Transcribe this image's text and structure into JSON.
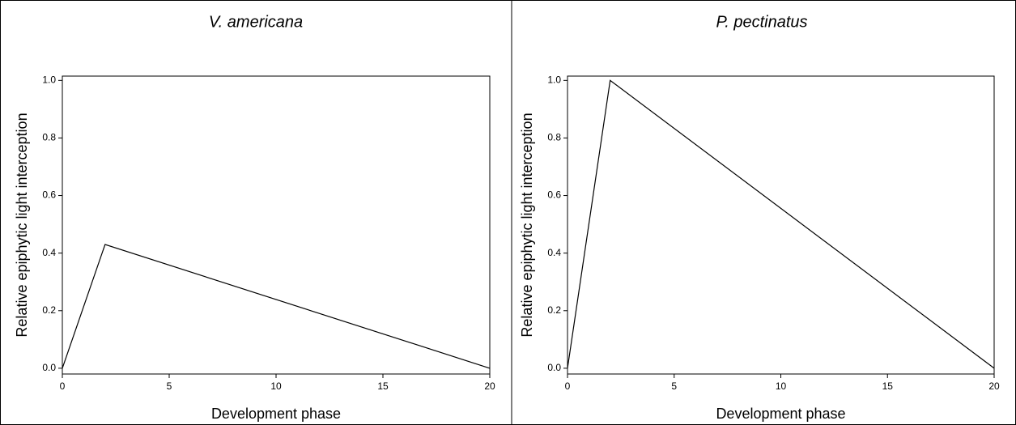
{
  "chart_data": [
    {
      "type": "line",
      "title": "V. americana",
      "xlabel": "Development phase",
      "ylabel": "Relative epiphytic light interception",
      "x": [
        0,
        2,
        20
      ],
      "series": [
        {
          "color": "#000000",
          "values": [
            0,
            0.43,
            0
          ]
        }
      ],
      "xlim": [
        0,
        20
      ],
      "xticks": [
        0,
        5,
        10,
        15,
        20
      ],
      "ylim": [
        -0.02,
        1.015
      ],
      "yticks": [
        {
          "value": 0,
          "label": "0.0"
        },
        0.2,
        0.4,
        0.6,
        0.8,
        {
          "value": 1,
          "label": "1.0"
        }
      ]
    },
    {
      "type": "line",
      "title": "P. pectinatus",
      "xlabel": "Development phase",
      "ylabel": "Relative epiphytic light interception",
      "x": [
        0,
        2,
        20
      ],
      "series": [
        {
          "color": "#000000",
          "values": [
            0,
            1.0,
            0
          ]
        }
      ],
      "xlim": [
        0,
        20
      ],
      "xticks": [
        0,
        5,
        10,
        15,
        20
      ],
      "ylim": [
        -0.02,
        1.015
      ],
      "yticks": [
        {
          "value": 0,
          "label": "0.0"
        },
        0.2,
        0.4,
        0.6,
        0.8,
        {
          "value": 1,
          "label": "1.0"
        }
      ]
    }
  ]
}
